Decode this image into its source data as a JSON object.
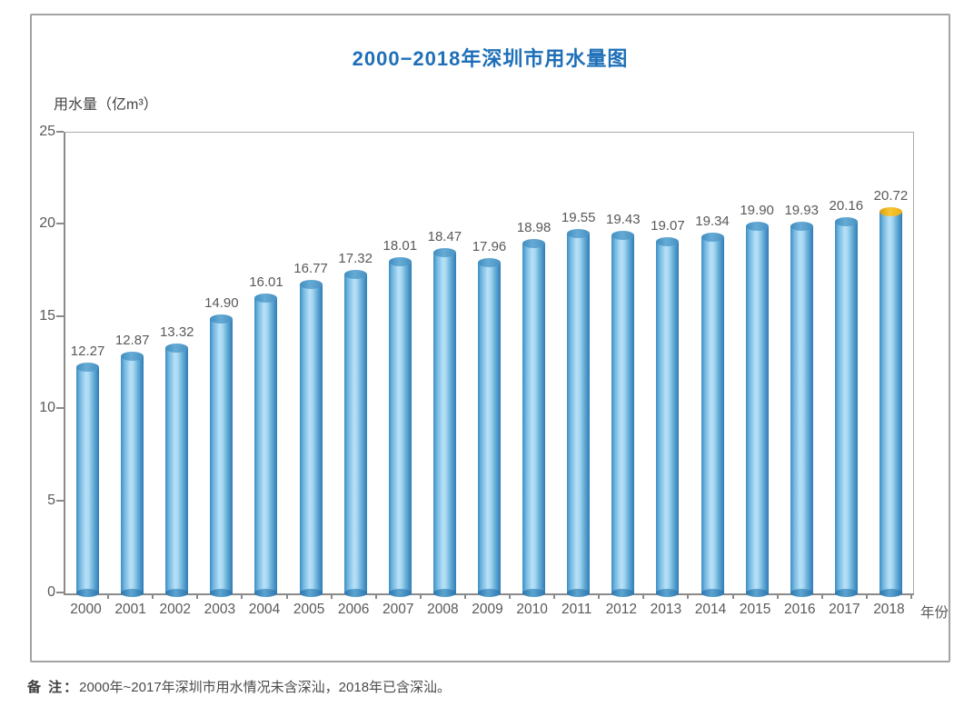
{
  "chart_data": {
    "type": "bar",
    "title": "2000−2018年深圳市用水量图",
    "y_axis_title": "用水量（亿m³）",
    "x_axis_title": "年份",
    "categories": [
      "2000",
      "2001",
      "2002",
      "2003",
      "2004",
      "2005",
      "2006",
      "2007",
      "2008",
      "2009",
      "2010",
      "2011",
      "2012",
      "2013",
      "2014",
      "2015",
      "2016",
      "2017",
      "2018"
    ],
    "values": [
      12.27,
      12.87,
      13.32,
      14.9,
      16.01,
      16.77,
      17.32,
      18.01,
      18.47,
      17.96,
      18.98,
      19.55,
      19.43,
      19.07,
      19.34,
      19.9,
      19.93,
      20.16,
      20.72
    ],
    "ylim": [
      0,
      25
    ],
    "yticks": [
      0,
      5,
      10,
      15,
      20,
      25
    ],
    "highlight_index": 18,
    "legend": "none",
    "grid": "off",
    "colors": {
      "title": "#1e6fb8",
      "text": "#595959",
      "axis": "#8a8a8a",
      "bar_edge": "#2f7cb5",
      "bar_light": "#b7e0f6",
      "bar_cap": "#4690c2",
      "highlight_cap": "#f2b31d"
    }
  },
  "note": {
    "label": "备 注：",
    "text": "2000年~2017年深圳市用水情况未含深汕，2018年已含深汕。"
  }
}
